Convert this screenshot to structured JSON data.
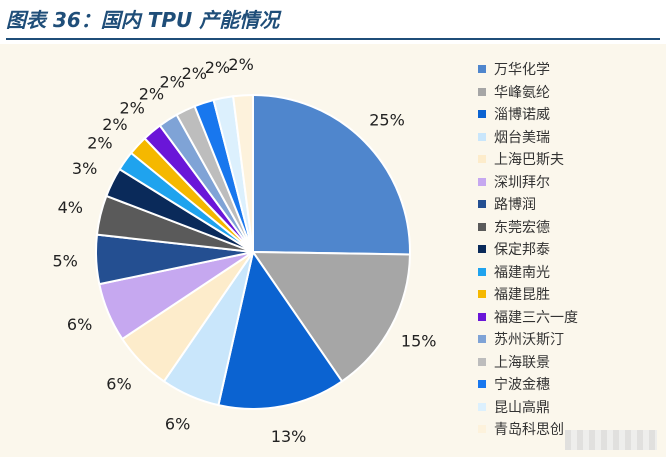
{
  "header": {
    "title": "图表 36：国内 TPU 产能情况",
    "accent_color": "#1f4e79"
  },
  "chart_data": {
    "type": "pie",
    "start_angle_deg": 0,
    "direction": "clockwise",
    "value_unit": "%",
    "legend_position": "right",
    "slices": [
      {
        "name": "万华化学",
        "value": 25,
        "label": "25%",
        "color": "#4f86cd"
      },
      {
        "name": "华峰氨纶",
        "value": 15,
        "label": "15%",
        "color": "#a6a6a6"
      },
      {
        "name": "淄博诺威",
        "value": 13,
        "label": "13%",
        "color": "#0b63d1"
      },
      {
        "name": "烟台美瑞",
        "value": 6,
        "label": "6%",
        "color": "#c9e6fb"
      },
      {
        "name": "上海巴斯夫",
        "value": 6,
        "label": "6%",
        "color": "#fdeccb"
      },
      {
        "name": "深圳拜尔",
        "value": 6,
        "label": "6%",
        "color": "#c6a8f0"
      },
      {
        "name": "路博润",
        "value": 5,
        "label": "5%",
        "color": "#244f91"
      },
      {
        "name": "东莞宏德",
        "value": 4,
        "label": "4%",
        "color": "#5a5a5a"
      },
      {
        "name": "保定邦泰",
        "value": 3,
        "label": "3%",
        "color": "#0a2a5a"
      },
      {
        "name": "福建南光",
        "value": 2,
        "label": "2%",
        "color": "#1fa3ee"
      },
      {
        "name": "福建昆胜",
        "value": 2,
        "label": "2%",
        "color": "#f5b800"
      },
      {
        "name": "福建三六一度",
        "value": 2,
        "label": "2%",
        "color": "#6a16d8"
      },
      {
        "name": "苏州沃斯汀",
        "value": 2,
        "label": "2%",
        "color": "#7fa3d6"
      },
      {
        "name": "上海联景",
        "value": 2,
        "label": "2%",
        "color": "#bdbdbd"
      },
      {
        "name": "宁波金穗",
        "value": 2,
        "label": "2%",
        "color": "#1877ee"
      },
      {
        "name": "昆山高鼎",
        "value": 2,
        "label": "2%",
        "color": "#dcf0fd"
      },
      {
        "name": "青岛科思创",
        "value": 2,
        "label": "2%",
        "color": "#fdf2dc"
      }
    ]
  }
}
